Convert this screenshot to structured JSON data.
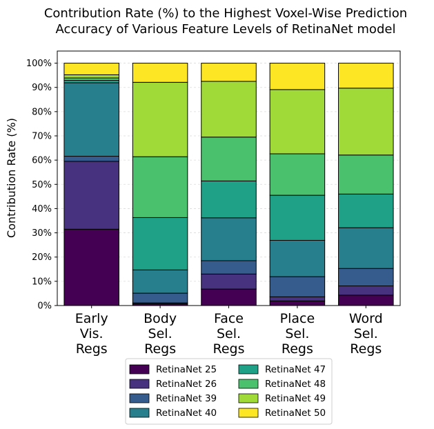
{
  "chart_data": {
    "type": "bar",
    "stacked": true,
    "title_lines": [
      "Contribution Rate (%) to the Highest Voxel-Wise Prediction",
      "Accuracy of Various Feature Levels of RetinaNet model"
    ],
    "ylabel": "Contribution Rate (%)",
    "xlabel": "",
    "ylim": [
      0,
      105
    ],
    "yticks": [
      0,
      10,
      20,
      30,
      40,
      50,
      60,
      70,
      80,
      90,
      100
    ],
    "ytick_labels": [
      "0%",
      "10%",
      "20%",
      "30%",
      "40%",
      "50%",
      "60%",
      "70%",
      "80%",
      "90%",
      "100%"
    ],
    "grid": "horizontal dashed",
    "legend_position": "below plot, 2 columns",
    "categories": [
      [
        "Early",
        "Vis.",
        "Regs"
      ],
      [
        "Body",
        "Sel.",
        "Regs"
      ],
      [
        "Face",
        "Sel.",
        "Regs"
      ],
      [
        "Place",
        "Sel.",
        "Regs"
      ],
      [
        "Word",
        "Sel.",
        "Regs"
      ]
    ],
    "series": [
      {
        "name": "RetinaNet 25",
        "color": "#440154",
        "values": [
          31.5,
          0.7,
          6.8,
          1.9,
          4.3
        ]
      },
      {
        "name": "RetinaNet 26",
        "color": "#46327e",
        "values": [
          28.0,
          0.4,
          6.2,
          1.7,
          3.8
        ]
      },
      {
        "name": "RetinaNet 39",
        "color": "#365c8d",
        "values": [
          2.1,
          4.0,
          5.5,
          8.3,
          7.2
        ]
      },
      {
        "name": "RetinaNet 40",
        "color": "#277f8e",
        "values": [
          30.3,
          9.6,
          17.7,
          15.0,
          16.8
        ]
      },
      {
        "name": "RetinaNet 47",
        "color": "#1fa187",
        "values": [
          1.0,
          21.6,
          15.2,
          18.6,
          13.9
        ]
      },
      {
        "name": "RetinaNet 48",
        "color": "#4ac16d",
        "values": [
          1.0,
          25.1,
          18.1,
          17.1,
          16.1
        ]
      },
      {
        "name": "RetinaNet 49",
        "color": "#a0da39",
        "values": [
          1.3,
          30.7,
          23.0,
          26.5,
          27.6
        ]
      },
      {
        "name": "RetinaNet 50",
        "color": "#fde725",
        "values": [
          4.8,
          7.9,
          7.5,
          10.9,
          10.3
        ]
      }
    ]
  }
}
